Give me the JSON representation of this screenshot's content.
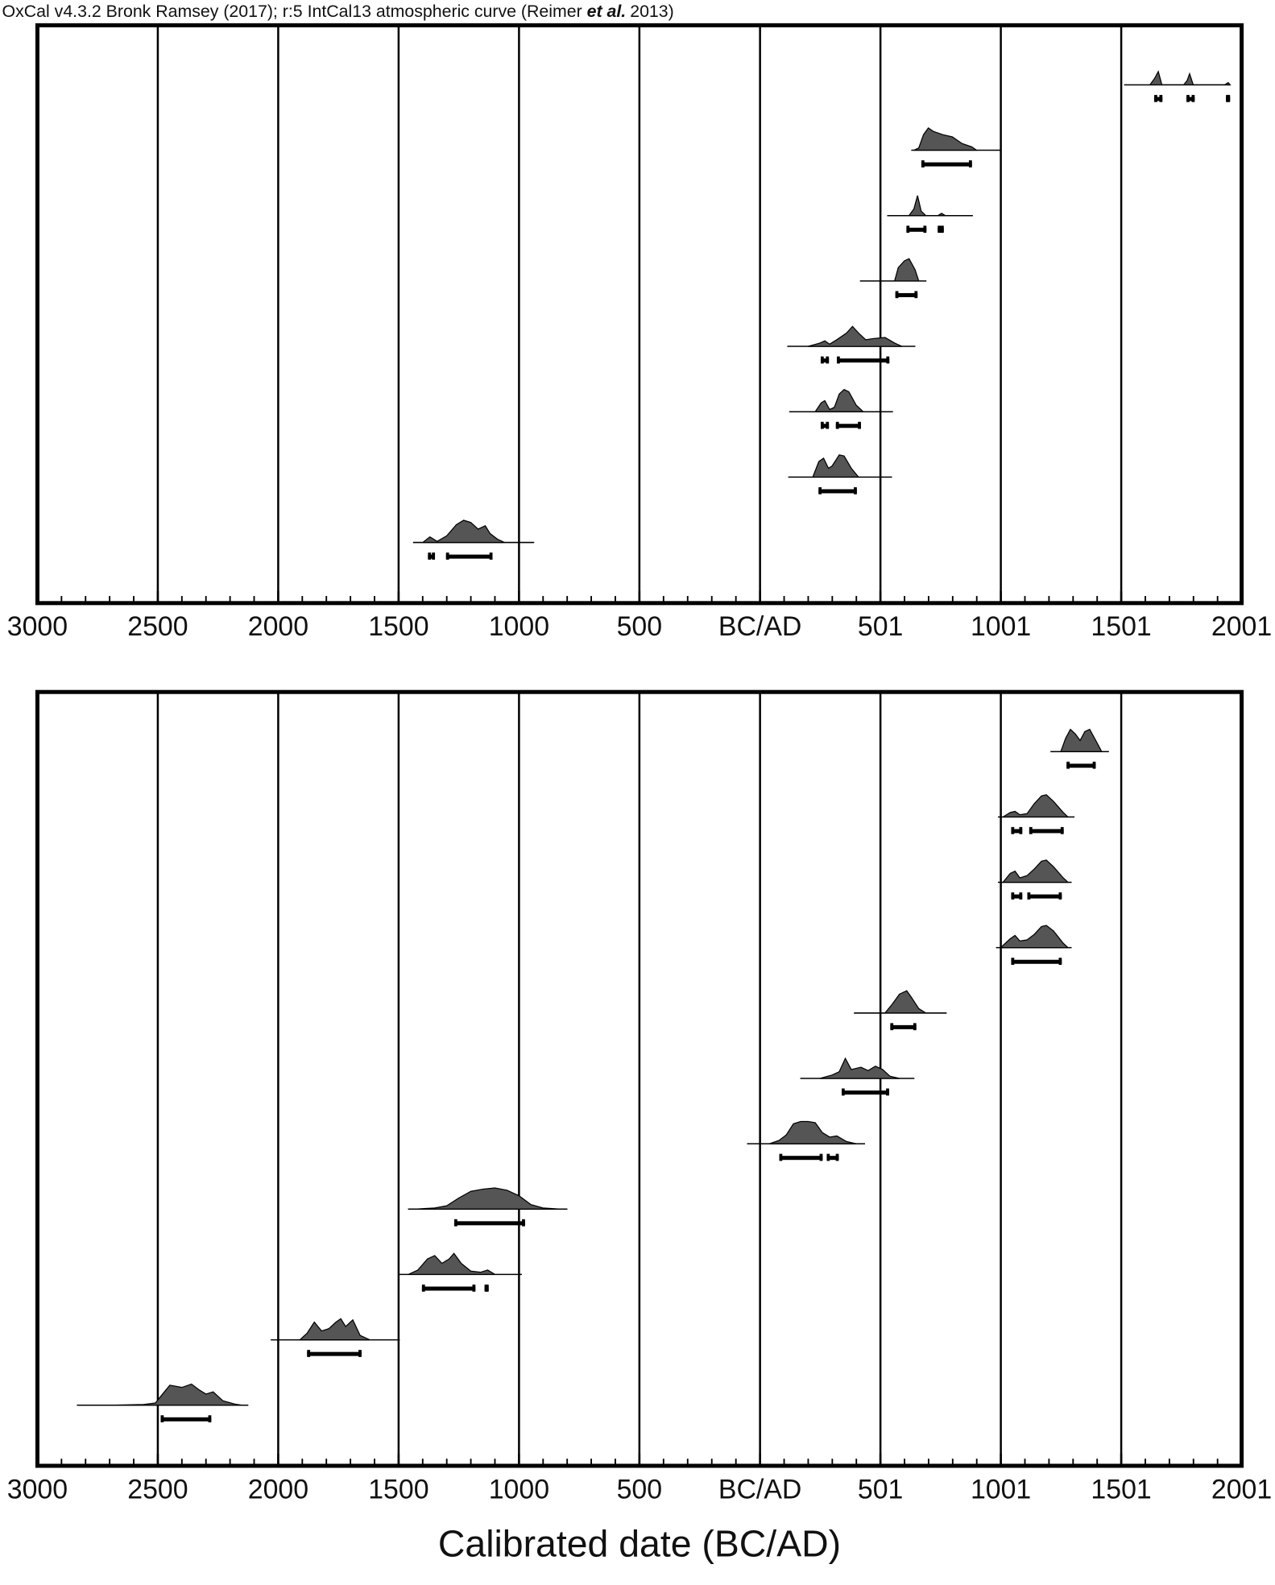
{
  "header": [
    "OxCal v4.3.2 Bronk Ramsey (2017); r:5 IntCal13 atmospheric curve (Reimer ",
    "et al.",
    "2013)"
  ],
  "chart_data": [
    {
      "type": "distribution",
      "xlim": [
        -3000,
        2001
      ],
      "xticks": [
        {
          "value": -3000,
          "label": "3000"
        },
        {
          "value": -2500,
          "label": "2500"
        },
        {
          "value": -2000,
          "label": "2000"
        },
        {
          "value": -1500,
          "label": "1500"
        },
        {
          "value": -1000,
          "label": "1000"
        },
        {
          "value": -500,
          "label": "500"
        },
        {
          "value": 1,
          "label": "BC/AD"
        },
        501,
        1001,
        1501,
        2001
      ],
      "color": "#555555",
      "distributions": [
        {
          "line": [
            1513,
            1953
          ],
          "x": [
            1620,
            1640,
            1655,
            1670,
            1760,
            1775,
            1785,
            1800,
            1930,
            1945,
            1953
          ],
          "p": [
            0,
            0.3,
            0.6,
            0,
            0,
            0.2,
            0.5,
            0,
            0,
            0.1,
            0
          ],
          "ranges": [
            [
              1638,
              1672
            ],
            [
              1772,
              1806
            ],
            [
              1936,
              1953
            ]
          ]
        },
        {
          "line": [
            629,
            998
          ],
          "x": [
            640,
            660,
            680,
            700,
            720,
            760,
            800,
            840,
            880,
            900
          ],
          "p": [
            0,
            0.1,
            0.7,
            1,
            0.85,
            0.7,
            0.6,
            0.3,
            0.15,
            0
          ],
          "ranges": [
            [
              671,
              881
            ]
          ]
        },
        {
          "line": [
            529,
            885
          ],
          "x": [
            620,
            640,
            655,
            670,
            690,
            740,
            755,
            770
          ],
          "p": [
            0,
            0.3,
            0.9,
            0.2,
            0,
            0,
            0.1,
            0
          ],
          "ranges": [
            [
              609,
              692
            ],
            [
              739,
              764
            ]
          ]
        },
        {
          "line": [
            416,
            692
          ],
          "x": [
            560,
            575,
            600,
            620,
            645,
            660
          ],
          "p": [
            0,
            0.6,
            0.9,
            1,
            0.5,
            0
          ],
          "ranges": [
            [
              563,
              655
            ]
          ]
        },
        {
          "line": [
            114,
            646
          ],
          "x": [
            200,
            250,
            270,
            290,
            320,
            360,
            385,
            410,
            440,
            470,
            520,
            560,
            590
          ],
          "p": [
            0,
            0.15,
            0.25,
            0.1,
            0.3,
            0.6,
            0.9,
            0.6,
            0.3,
            0.35,
            0.4,
            0.15,
            0
          ],
          "ranges": [
            [
              253,
              287
            ],
            [
              320,
              538
            ]
          ]
        },
        {
          "line": [
            122,
            553
          ],
          "x": [
            230,
            255,
            270,
            290,
            310,
            330,
            350,
            370,
            400,
            430
          ],
          "p": [
            0,
            0.4,
            0.5,
            0.1,
            0.2,
            0.8,
            1,
            0.9,
            0.3,
            0
          ],
          "ranges": [
            [
              253,
              287
            ],
            [
              316,
              420
            ]
          ]
        },
        {
          "line": [
            118,
            549
          ],
          "x": [
            220,
            245,
            265,
            285,
            300,
            330,
            350,
            380,
            410
          ],
          "p": [
            0,
            0.7,
            0.85,
            0.4,
            0.5,
            1,
            0.95,
            0.4,
            0
          ],
          "ranges": [
            [
              244,
              403
            ]
          ]
        },
        {
          "line": [
            -1440,
            -937
          ],
          "x": [
            -1400,
            -1370,
            -1340,
            -1300,
            -1260,
            -1230,
            -1200,
            -1170,
            -1140,
            -1120,
            -1090,
            -1060
          ],
          "p": [
            0,
            0.25,
            0.05,
            0.3,
            0.8,
            1,
            0.9,
            0.6,
            0.75,
            0.4,
            0.15,
            0
          ],
          "ranges": [
            [
              -1378,
              -1349
            ],
            [
              -1303,
              -1110
            ]
          ]
        }
      ]
    },
    {
      "type": "distribution",
      "xlim": [
        -3000,
        2001
      ],
      "xticks": [
        {
          "value": -3000,
          "label": "3000"
        },
        {
          "value": -2500,
          "label": "2500"
        },
        {
          "value": -2000,
          "label": "2000"
        },
        {
          "value": -1500,
          "label": "1500"
        },
        {
          "value": -1000,
          "label": "1000"
        },
        {
          "value": -500,
          "label": "500"
        },
        {
          "value": 1,
          "label": "BC/AD"
        },
        501,
        1001,
        1501,
        2001
      ],
      "color": "#555555",
      "xlabel": "Calibrated date (BC/AD)",
      "distributions": [
        {
          "line": [
            1207,
            1450
          ],
          "x": [
            1250,
            1270,
            1290,
            1310,
            1330,
            1350,
            1370,
            1400,
            1420
          ],
          "p": [
            0,
            0.6,
            1,
            0.8,
            0.5,
            0.9,
            1,
            0.4,
            0
          ],
          "ranges": [
            [
              1274,
              1395
            ]
          ]
        },
        {
          "line": [
            989,
            1307
          ],
          "x": [
            1010,
            1040,
            1060,
            1080,
            1110,
            1140,
            1170,
            1190,
            1220,
            1260,
            1280
          ],
          "p": [
            0,
            0.2,
            0.25,
            0.1,
            0.15,
            0.6,
            0.95,
            1,
            0.7,
            0.2,
            0
          ],
          "ranges": [
            [
              1044,
              1090
            ],
            [
              1119,
              1262
            ]
          ]
        },
        {
          "line": [
            989,
            1295
          ],
          "x": [
            1010,
            1040,
            1060,
            1080,
            1110,
            1140,
            1170,
            1190,
            1220,
            1260,
            1280
          ],
          "p": [
            0,
            0.4,
            0.5,
            0.2,
            0.3,
            0.6,
            0.95,
            1,
            0.7,
            0.2,
            0
          ],
          "ranges": [
            [
              1044,
              1090
            ],
            [
              1111,
              1254
            ]
          ]
        },
        {
          "line": [
            981,
            1295
          ],
          "x": [
            1000,
            1040,
            1060,
            1080,
            1110,
            1140,
            1170,
            1190,
            1220,
            1260,
            1280
          ],
          "p": [
            0,
            0.4,
            0.55,
            0.3,
            0.35,
            0.6,
            0.95,
            1,
            0.75,
            0.2,
            0
          ],
          "ranges": [
            [
              1044,
              1254
            ]
          ]
        },
        {
          "line": [
            391,
            776
          ],
          "x": [
            520,
            550,
            580,
            610,
            630,
            660,
            690
          ],
          "p": [
            0,
            0.4,
            0.85,
            1,
            0.7,
            0.2,
            0
          ],
          "ranges": [
            [
              542,
              650
            ]
          ]
        },
        {
          "line": [
            168,
            642
          ],
          "x": [
            250,
            300,
            330,
            355,
            380,
            420,
            450,
            480,
            510,
            540,
            580
          ],
          "p": [
            0,
            0.15,
            0.3,
            0.9,
            0.4,
            0.5,
            0.35,
            0.55,
            0.4,
            0.1,
            0
          ],
          "ranges": [
            [
              340,
              537
            ]
          ]
        },
        {
          "line": [
            -53,
            437
          ],
          "x": [
            40,
            80,
            110,
            140,
            170,
            200,
            230,
            260,
            290,
            320,
            360,
            400
          ],
          "p": [
            0,
            0.15,
            0.4,
            0.9,
            1,
            1,
            0.95,
            0.5,
            0.3,
            0.35,
            0.1,
            0
          ],
          "ranges": [
            [
              81,
              261
            ],
            [
              278,
              328
            ]
          ]
        },
        {
          "line": [
            -1461,
            -799
          ],
          "x": [
            -1430,
            -1350,
            -1300,
            -1250,
            -1200,
            -1150,
            -1100,
            -1050,
            -1000,
            -950,
            -900,
            -830
          ],
          "p": [
            0,
            0.05,
            0.15,
            0.5,
            0.8,
            0.9,
            0.95,
            0.85,
            0.6,
            0.2,
            0.05,
            0
          ],
          "ranges": [
            [
              -1269,
              -975
            ]
          ]
        },
        {
          "line": [
            -1503,
            -988
          ],
          "x": [
            -1460,
            -1420,
            -1380,
            -1350,
            -1320,
            -1290,
            -1270,
            -1240,
            -1200,
            -1160,
            -1130,
            -1100
          ],
          "p": [
            0,
            0.2,
            0.7,
            0.85,
            0.5,
            0.7,
            0.95,
            0.5,
            0.15,
            0.1,
            0.2,
            0
          ],
          "ranges": [
            [
              -1403,
              -1181
            ],
            [
              -1143,
              -1126
            ]
          ]
        },
        {
          "line": [
            -2031,
            -1495
          ],
          "x": [
            -1910,
            -1880,
            -1850,
            -1820,
            -1790,
            -1760,
            -1740,
            -1720,
            -1690,
            -1660,
            -1620
          ],
          "p": [
            0,
            0.3,
            0.8,
            0.4,
            0.5,
            0.8,
            0.95,
            0.6,
            0.9,
            0.2,
            0
          ],
          "ranges": [
            [
              -1880,
              -1654
            ]
          ]
        },
        {
          "line": [
            -2836,
            -2124
          ],
          "x": [
            -2700,
            -2560,
            -2510,
            -2480,
            -2450,
            -2400,
            -2360,
            -2330,
            -2300,
            -2270,
            -2230,
            -2180,
            -2150
          ],
          "p": [
            0,
            0.03,
            0.1,
            0.5,
            0.9,
            0.8,
            0.95,
            0.7,
            0.5,
            0.6,
            0.2,
            0.05,
            0
          ],
          "ranges": [
            [
              -2488,
              -2278
            ]
          ]
        }
      ]
    }
  ]
}
